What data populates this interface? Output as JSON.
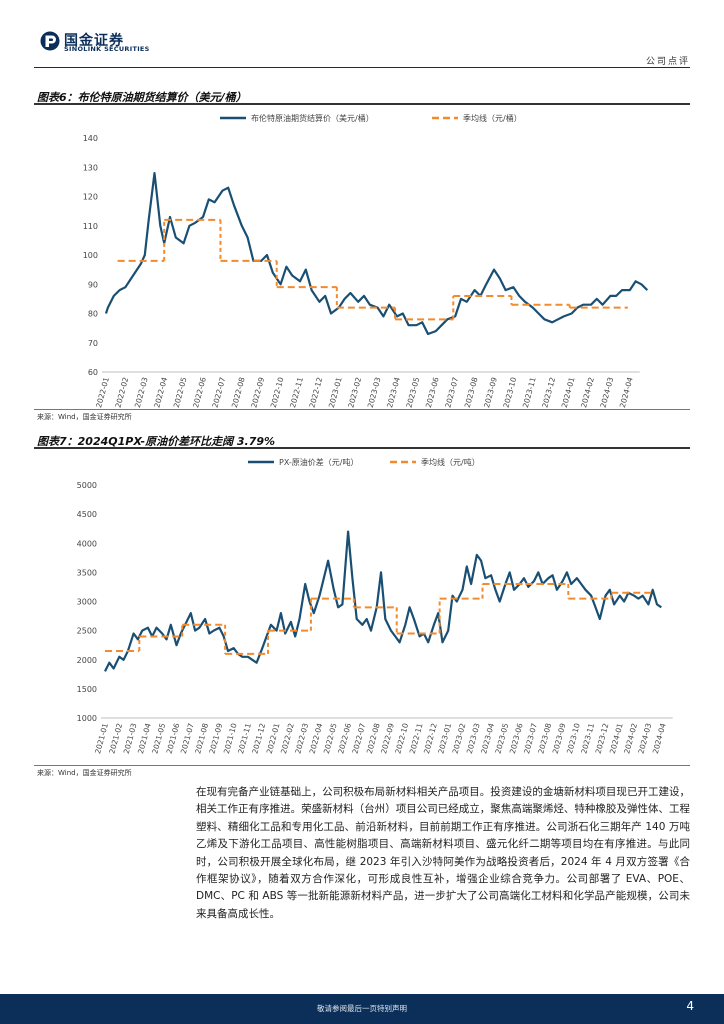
{
  "header": {
    "logo_cn": "国金证券",
    "logo_en": "SINOLINK SECURITIES",
    "doc_type": "公司点评",
    "brand_color": "#0c2f5a"
  },
  "fig6": {
    "title": "图表6：布伦特原油期货结算价（美元/桶）",
    "source": "来源：Wind，国金证券研究所"
  },
  "fig7": {
    "title": "图表7：2024Q1PX-原油价差环比走阔 3.79%",
    "source": "来源：Wind，国金证券研究所"
  },
  "chart_data": [
    {
      "type": "line",
      "title": "布伦特原油期货结算价（美元/桶）",
      "legend": [
        "布伦特原油期货结算价（美元/桶）",
        "季均线（元/桶）"
      ],
      "legend_position": "top",
      "ylim": [
        60,
        140
      ],
      "yticks": [
        60,
        70,
        80,
        90,
        100,
        110,
        120,
        130,
        140
      ],
      "x_ticks": [
        "2022-01",
        "2022-02",
        "2022-03",
        "2022-04",
        "2022-05",
        "2022-06",
        "2022-07",
        "2022-08",
        "2022-09",
        "2022-10",
        "2022-11",
        "2022-12",
        "2023-01",
        "2023-02",
        "2023-03",
        "2023-04",
        "2023-05",
        "2023-06",
        "2023-07",
        "2023-08",
        "2023-09",
        "2023-10",
        "2023-11",
        "2023-12",
        "2024-01",
        "2024-02",
        "2024-03",
        "2024-04"
      ],
      "series": [
        {
          "name": "布伦特原油期货结算价（美元/桶）",
          "color": "#1a4f74",
          "t": [
            0,
            0.1,
            0.4,
            0.7,
            1.0,
            1.3,
            1.6,
            1.8,
            2.0,
            2.2,
            2.5,
            2.8,
            3.0,
            3.3,
            3.6,
            4.0,
            4.3,
            4.6,
            5.0,
            5.3,
            5.6,
            6.0,
            6.3,
            6.6,
            7.0,
            7.3,
            7.6,
            8.0,
            8.3,
            8.6,
            9.0,
            9.3,
            9.6,
            10.0,
            10.3,
            10.6,
            11.0,
            11.3,
            11.6,
            12.0,
            12.3,
            12.6,
            13.0,
            13.3,
            13.6,
            14.0,
            14.3,
            14.6,
            15.0,
            15.3,
            15.6,
            16.0,
            16.3,
            16.6,
            17.0,
            17.3,
            17.6,
            18.0,
            18.3,
            18.6,
            19.0,
            19.3,
            19.6,
            20.0,
            20.3,
            20.6,
            21.0,
            21.3,
            21.6,
            22.0,
            22.3,
            22.6,
            23.0,
            23.3,
            23.6,
            24.0,
            24.3,
            24.6,
            25.0,
            25.3,
            25.6,
            26.0,
            26.3,
            26.6,
            27.0,
            27.3,
            27.6,
            27.9
          ],
          "values": [
            80,
            82,
            86,
            88,
            89,
            92,
            95,
            97,
            100,
            112,
            128,
            110,
            104,
            113,
            106,
            104,
            110,
            111,
            113,
            119,
            118,
            122,
            123,
            117,
            110,
            106,
            98,
            98,
            100,
            94,
            90,
            96,
            93,
            91,
            95,
            88,
            84,
            86,
            80,
            82,
            85,
            87,
            84,
            86,
            83,
            82,
            79,
            83,
            79,
            80,
            76,
            76,
            77,
            73,
            74,
            76,
            78,
            79,
            85,
            84,
            88,
            86,
            90,
            95,
            92,
            88,
            89,
            86,
            84,
            82,
            80,
            78,
            77,
            78,
            79,
            80,
            82,
            83,
            83,
            85,
            83,
            86,
            86,
            88,
            88,
            91,
            90,
            88
          ]
        },
        {
          "name": "季均线（元/桶）",
          "color": "#f28a2e",
          "style": "dashed",
          "steps": [
            {
              "start": 0.6,
              "end": 3.0,
              "value": 98
            },
            {
              "start": 3.0,
              "end": 5.9,
              "value": 112
            },
            {
              "start": 5.9,
              "end": 8.8,
              "value": 98
            },
            {
              "start": 8.8,
              "end": 11.9,
              "value": 89
            },
            {
              "start": 11.9,
              "end": 14.9,
              "value": 82
            },
            {
              "start": 14.9,
              "end": 17.9,
              "value": 78
            },
            {
              "start": 17.9,
              "end": 20.9,
              "value": 86
            },
            {
              "start": 20.9,
              "end": 23.9,
              "value": 83
            },
            {
              "start": 23.9,
              "end": 26.9,
              "value": 82
            }
          ]
        }
      ]
    },
    {
      "type": "line",
      "title": "2024Q1PX-原油价差环比走阔 3.79%",
      "legend": [
        "PX-原油价差（元/吨）",
        "季均线（元/吨）"
      ],
      "legend_position": "top",
      "ylim": [
        1000,
        5000
      ],
      "yticks": [
        1000,
        1500,
        2000,
        2500,
        3000,
        3500,
        4000,
        4500,
        5000
      ],
      "x_ticks": [
        "2021-01",
        "2021-02",
        "2021-03",
        "2021-04",
        "2021-05",
        "2021-06",
        "2021-07",
        "2021-08",
        "2021-09",
        "2021-10",
        "2021-11",
        "2021-12",
        "2022-01",
        "2022-02",
        "2022-03",
        "2022-04",
        "2022-05",
        "2022-06",
        "2022-07",
        "2022-08",
        "2022-09",
        "2022-10",
        "2022-11",
        "2022-12",
        "2023-01",
        "2023-02",
        "2023-03",
        "2023-04",
        "2023-05",
        "2023-06",
        "2023-07",
        "2023-08",
        "2023-09",
        "2023-10",
        "2023-11",
        "2023-12",
        "2024-01",
        "2024-02",
        "2024-03",
        "2024-04"
      ],
      "series": [
        {
          "name": "PX-原油价差（元/吨）",
          "color": "#1a4f74",
          "t": [
            0,
            0.3,
            0.6,
            1.0,
            1.3,
            1.6,
            2.0,
            2.3,
            2.6,
            3.0,
            3.3,
            3.6,
            4.0,
            4.3,
            4.6,
            5.0,
            5.3,
            5.6,
            6.0,
            6.3,
            6.6,
            7.0,
            7.3,
            7.6,
            8.0,
            8.3,
            8.6,
            9.0,
            9.3,
            9.6,
            10.0,
            10.3,
            10.6,
            11.0,
            11.3,
            11.6,
            12.0,
            12.3,
            12.6,
            13.0,
            13.3,
            13.6,
            14.0,
            14.3,
            14.6,
            15.0,
            15.3,
            15.6,
            16.0,
            16.3,
            16.6,
            17.0,
            17.3,
            17.6,
            18.0,
            18.3,
            18.6,
            19.0,
            19.3,
            19.6,
            20.0,
            20.3,
            20.6,
            21.0,
            21.3,
            21.6,
            22.0,
            22.3,
            22.6,
            23.0,
            23.3,
            23.6,
            24.0,
            24.3,
            24.6,
            25.0,
            25.3,
            25.6,
            26.0,
            26.3,
            26.6,
            27.0,
            27.3,
            27.6,
            28.0,
            28.3,
            28.6,
            29.0,
            29.3,
            29.6,
            30.0,
            30.3,
            30.6,
            31.0,
            31.3,
            31.6,
            32.0,
            32.3,
            32.6,
            33.0,
            33.3,
            33.6,
            34.0,
            34.3,
            34.6,
            35.0,
            35.3,
            35.6,
            36.0,
            36.3,
            36.6,
            37.0,
            37.3,
            37.6,
            38.0,
            38.3,
            38.6,
            38.9
          ],
          "values": [
            1800,
            1950,
            1850,
            2050,
            2000,
            2150,
            2450,
            2350,
            2500,
            2550,
            2400,
            2550,
            2450,
            2350,
            2600,
            2250,
            2450,
            2600,
            2800,
            2500,
            2550,
            2700,
            2450,
            2500,
            2550,
            2400,
            2150,
            2200,
            2100,
            2050,
            2050,
            2000,
            1950,
            2200,
            2400,
            2600,
            2500,
            2800,
            2450,
            2650,
            2400,
            2700,
            3300,
            3000,
            2800,
            3100,
            3400,
            3700,
            3200,
            2900,
            2950,
            4200,
            3400,
            2700,
            2600,
            2700,
            2500,
            2900,
            3500,
            2700,
            2500,
            2400,
            2300,
            2600,
            2900,
            2700,
            2400,
            2450,
            2300,
            2600,
            2800,
            2300,
            2500,
            3100,
            3000,
            3200,
            3600,
            3300,
            3800,
            3700,
            3400,
            3450,
            3200,
            3000,
            3300,
            3500,
            3200,
            3300,
            3400,
            3250,
            3350,
            3500,
            3300,
            3400,
            3450,
            3200,
            3350,
            3500,
            3300,
            3400,
            3300,
            3200,
            3100,
            2900,
            2700,
            3100,
            3200,
            2950,
            3100,
            3000,
            3150,
            3100,
            3050,
            3100,
            2950,
            3200,
            2950,
            2900
          ]
        },
        {
          "name": "季均线（元/吨）",
          "color": "#f28a2e",
          "style": "dashed",
          "steps": [
            {
              "start": 0,
              "end": 2.4,
              "value": 2150
            },
            {
              "start": 2.4,
              "end": 5.4,
              "value": 2400
            },
            {
              "start": 5.4,
              "end": 8.4,
              "value": 2600
            },
            {
              "start": 8.4,
              "end": 11.4,
              "value": 2100
            },
            {
              "start": 11.4,
              "end": 14.4,
              "value": 2500
            },
            {
              "start": 14.4,
              "end": 17.4,
              "value": 3050
            },
            {
              "start": 17.4,
              "end": 20.4,
              "value": 2900
            },
            {
              "start": 20.4,
              "end": 23.4,
              "value": 2450
            },
            {
              "start": 23.4,
              "end": 26.4,
              "value": 3050
            },
            {
              "start": 26.4,
              "end": 29.4,
              "value": 3300
            },
            {
              "start": 29.4,
              "end": 32.4,
              "value": 3300
            },
            {
              "start": 32.4,
              "end": 35.4,
              "value": 3050
            },
            {
              "start": 35.4,
              "end": 38.4,
              "value": 3150
            }
          ]
        }
      ]
    }
  ],
  "body": {
    "paragraph": "在现有完备产业链基础上，公司积极布局新材料相关产品项目。投资建设的金塘新材料项目现已开工建设，相关工作正有序推进。荣盛新材料（台州）项目公司已经成立，聚焦高端聚烯烃、特种橡胶及弹性体、工程塑料、精细化工品和专用化工品、前沿新材料，目前前期工作正有序推进。公司浙石化三期年产 140 万吨乙烯及下游化工品项目、高性能树脂项目、高端新材料项目、盛元化纤二期等项目均在有序推进。与此同时，公司积极开展全球化布局，继 2023 年引入沙特阿美作为战略投资者后，2024 年 4 月双方签署《合作框架协议》，随着双方合作深化，可形成良性互补，增强企业综合竞争力。公司部署了 EVA、POE、DMC、PC 和 ABS 等一批新能源新材料产品，进一步扩大了公司高端化工材料和化学品产能规模，公司未来具备高成长性。"
  },
  "footer": {
    "disclaimer": "敬请参阅最后一页特别声明",
    "page_number": "4"
  }
}
